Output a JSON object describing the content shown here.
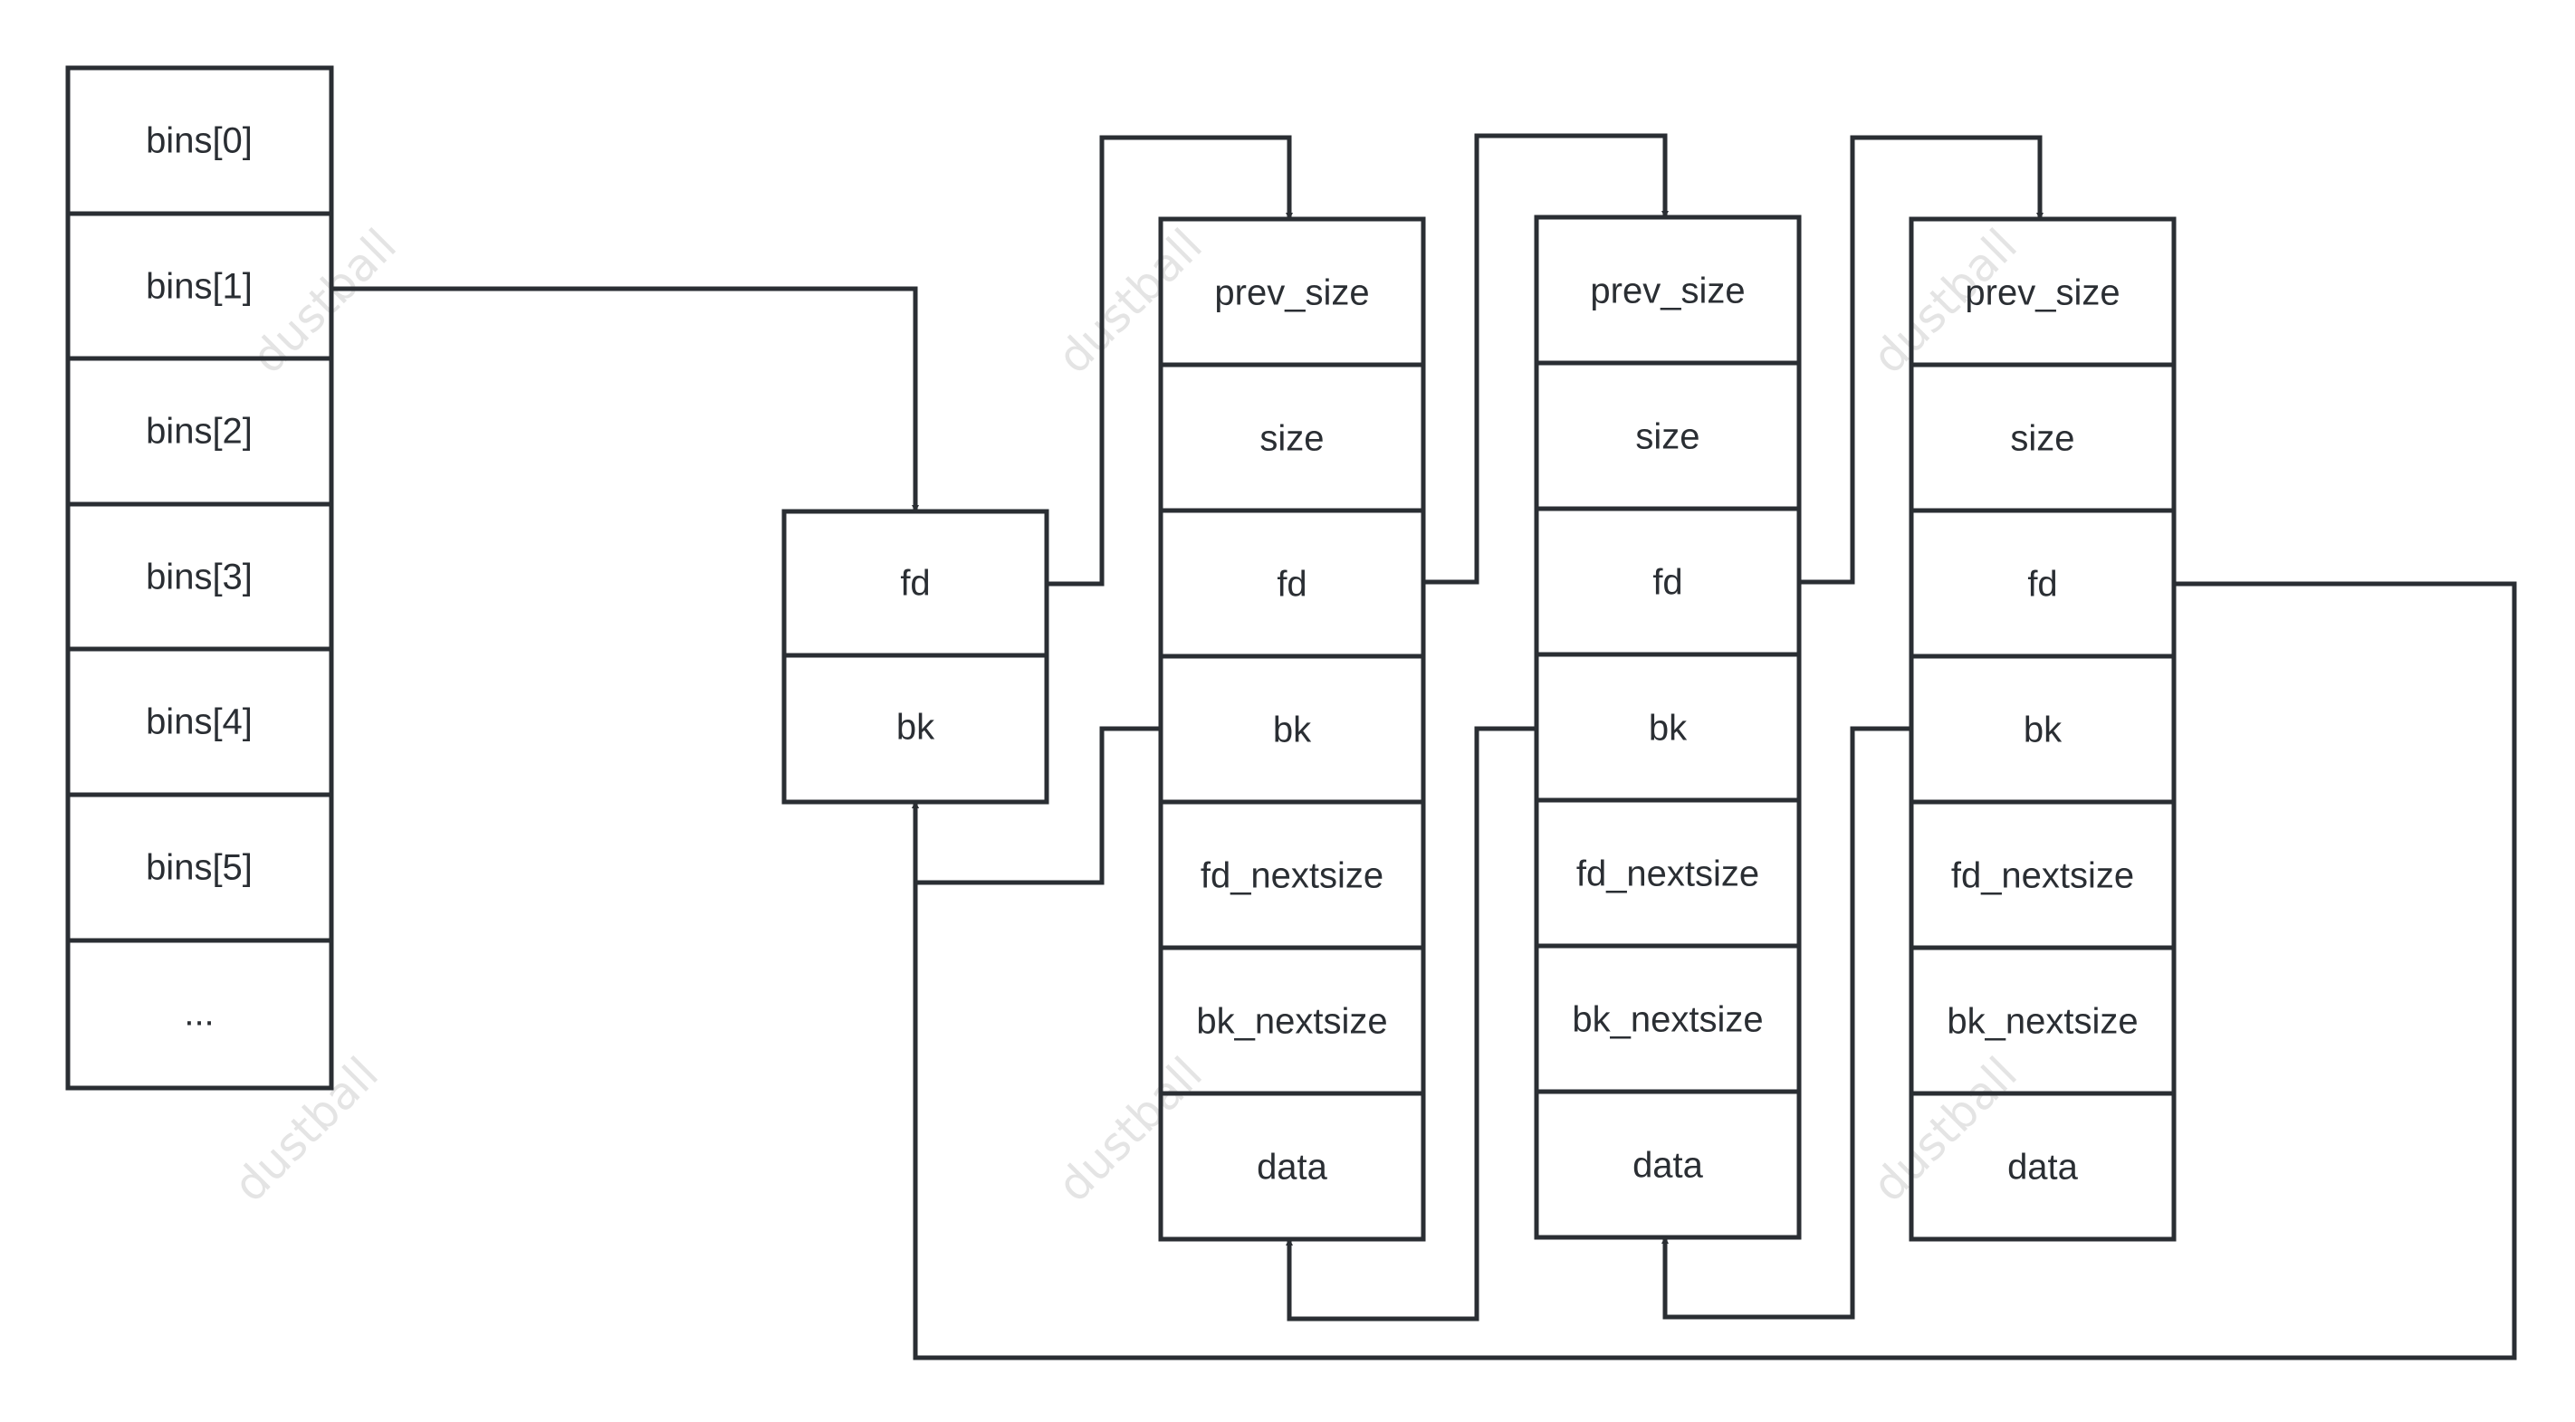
{
  "bins": [
    "bins[0]",
    "bins[1]",
    "bins[2]",
    "bins[3]",
    "bins[4]",
    "bins[5]",
    "..."
  ],
  "bin_head": [
    "fd",
    "bk"
  ],
  "chunks": [
    {
      "fields": [
        "prev_size",
        "size",
        "fd",
        "bk",
        "fd_nextsize",
        "bk_nextsize",
        "data"
      ]
    },
    {
      "fields": [
        "prev_size",
        "size",
        "fd",
        "bk",
        "fd_nextsize",
        "bk_nextsize",
        "data"
      ]
    },
    {
      "fields": [
        "prev_size",
        "size",
        "fd",
        "bk",
        "fd_nextsize",
        "bk_nextsize",
        "data"
      ]
    }
  ],
  "watermark": "dustball",
  "colors": {
    "line": "#2a2e33",
    "text": "#2a2e33",
    "watermark": "#e4e4e4"
  }
}
